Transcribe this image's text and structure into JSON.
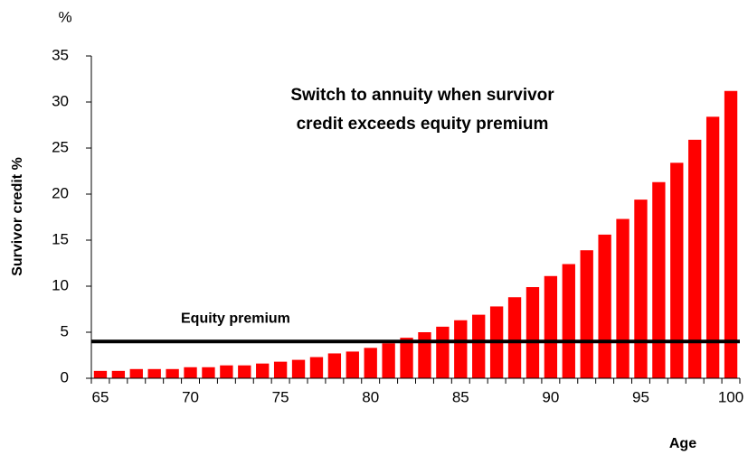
{
  "chart_data": {
    "type": "bar",
    "unit_label": "%",
    "y_label": "Survivor credit  %",
    "x_label": "Age",
    "annotation": [
      "Switch to annuity when survivor",
      "credit exceeds equity premium"
    ],
    "reference_line": {
      "label": "Equity premium",
      "value": 4,
      "color": "#000000"
    },
    "color": "#ff0000",
    "x": [
      65,
      66,
      67,
      68,
      69,
      70,
      71,
      72,
      73,
      74,
      75,
      76,
      77,
      78,
      79,
      80,
      81,
      82,
      83,
      84,
      85,
      86,
      87,
      88,
      89,
      90,
      91,
      92,
      93,
      94,
      95,
      96,
      97,
      98,
      99,
      100
    ],
    "values": [
      0.8,
      0.8,
      1.0,
      1.0,
      1.0,
      1.2,
      1.2,
      1.4,
      1.4,
      1.6,
      1.8,
      2.0,
      2.3,
      2.7,
      2.9,
      3.3,
      3.8,
      4.4,
      5.0,
      5.6,
      6.3,
      6.9,
      7.8,
      8.8,
      9.9,
      11.1,
      12.4,
      13.9,
      15.6,
      17.3,
      19.4,
      21.3,
      23.4,
      25.9,
      28.4,
      31.2
    ],
    "xlim": [
      64.5,
      100.5
    ],
    "xticks": [
      65,
      70,
      75,
      80,
      85,
      90,
      95,
      100
    ],
    "ylim": [
      0,
      35
    ],
    "yticks": [
      0,
      5,
      10,
      15,
      20,
      25,
      30,
      35
    ]
  }
}
